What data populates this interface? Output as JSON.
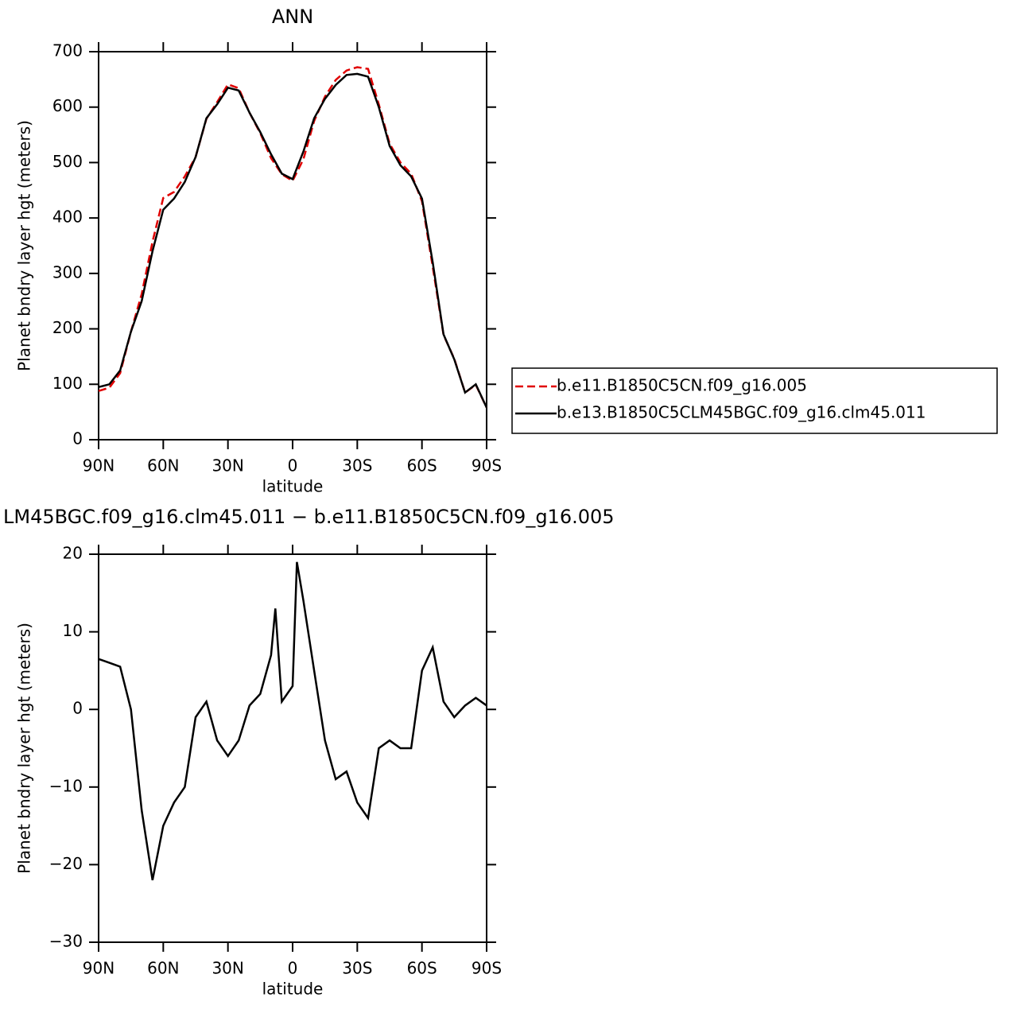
{
  "chart_data": [
    {
      "type": "line",
      "title": "ANN",
      "xlabel": "latitude",
      "ylabel": "Planet bndry layer hgt (meters)",
      "xlim": [
        90,
        -90
      ],
      "xticks": [
        {
          "value": 90,
          "label": "90N"
        },
        {
          "value": 60,
          "label": "60N"
        },
        {
          "value": 30,
          "label": "30N"
        },
        0,
        {
          "value": -30,
          "label": "30S"
        },
        {
          "value": -60,
          "label": "60S"
        },
        {
          "value": -90,
          "label": "90S"
        }
      ],
      "ylim": [
        0,
        700
      ],
      "yticks": [
        0,
        100,
        200,
        300,
        400,
        500,
        600,
        700
      ],
      "legend": "right",
      "series": [
        {
          "name": "b.e11.B1850C5CN.f09_g16.005",
          "color": "#e00000",
          "style": "dashed",
          "x": [
            90,
            85,
            80,
            75,
            70,
            65,
            60,
            55,
            50,
            45,
            40,
            35,
            30,
            25,
            20,
            15,
            10,
            5,
            0,
            -5,
            -10,
            -15,
            -20,
            -25,
            -30,
            -35,
            -40,
            -45,
            -50,
            -55,
            -60,
            -65,
            -70,
            -75,
            -80,
            -85,
            -90
          ],
          "values": [
            88,
            94,
            120,
            195,
            263,
            357,
            436,
            447,
            475,
            510,
            579,
            609,
            641,
            634,
            590,
            553,
            508,
            479,
            467,
            506,
            575,
            619,
            649,
            666,
            672,
            669,
            605,
            534,
            500,
            480,
            430,
            312,
            189,
            146,
            85,
            99,
            58
          ]
        },
        {
          "name": "b.e13.B1850C5CLM45BGC.f09_g16.clm45.011",
          "color": "#000000",
          "style": "solid",
          "x": [
            90,
            85,
            80,
            75,
            70,
            65,
            60,
            55,
            50,
            45,
            40,
            35,
            30,
            25,
            20,
            15,
            10,
            5,
            0,
            -5,
            -10,
            -15,
            -20,
            -25,
            -30,
            -35,
            -40,
            -45,
            -50,
            -55,
            -60,
            -65,
            -70,
            -75,
            -80,
            -85,
            -90
          ],
          "values": [
            95,
            100,
            125,
            195,
            250,
            340,
            415,
            435,
            465,
            510,
            580,
            605,
            635,
            630,
            590,
            555,
            515,
            480,
            470,
            520,
            580,
            615,
            640,
            658,
            660,
            655,
            600,
            530,
            495,
            475,
            435,
            320,
            190,
            145,
            85,
            100,
            58
          ]
        }
      ]
    },
    {
      "type": "line",
      "title": "LM45BGC.f09_g16.clm45.011 − b.e11.B1850C5CN.f09_g16.005",
      "xlabel": "latitude",
      "ylabel": "Planet bndry layer hgt (meters)",
      "xlim": [
        90,
        -90
      ],
      "xticks": [
        {
          "value": 90,
          "label": "90N"
        },
        {
          "value": 60,
          "label": "60N"
        },
        {
          "value": 30,
          "label": "30N"
        },
        0,
        {
          "value": -30,
          "label": "30S"
        },
        {
          "value": -60,
          "label": "60S"
        },
        {
          "value": -90,
          "label": "90S"
        }
      ],
      "ylim": [
        -30,
        20
      ],
      "yticks": [
        {
          "value": -30,
          "label": "−30"
        },
        {
          "value": -20,
          "label": "−20"
        },
        {
          "value": -10,
          "label": "−10"
        },
        0,
        10,
        20
      ],
      "series": [
        {
          "color": "#000000",
          "style": "solid",
          "x": [
            90,
            85,
            80,
            75,
            70,
            65,
            60,
            55,
            50,
            45,
            40,
            35,
            30,
            25,
            20,
            15,
            10,
            8,
            5,
            0,
            -2,
            -5,
            -10,
            -15,
            -20,
            -25,
            -30,
            -35,
            -40,
            -45,
            -50,
            -55,
            -60,
            -65,
            -70,
            -75,
            -80,
            -85,
            -90
          ],
          "values": [
            6.5,
            6,
            5.5,
            0,
            -13,
            -22,
            -15,
            -12,
            -10,
            -1,
            1,
            -4,
            -6,
            -4,
            0.5,
            2,
            7,
            13,
            1,
            3,
            19,
            14,
            5,
            -4,
            -9,
            -8,
            -12,
            -14,
            -5,
            -4,
            -5,
            -5,
            5,
            8,
            1,
            -1,
            0.5,
            1.5,
            0.5
          ]
        }
      ]
    }
  ]
}
